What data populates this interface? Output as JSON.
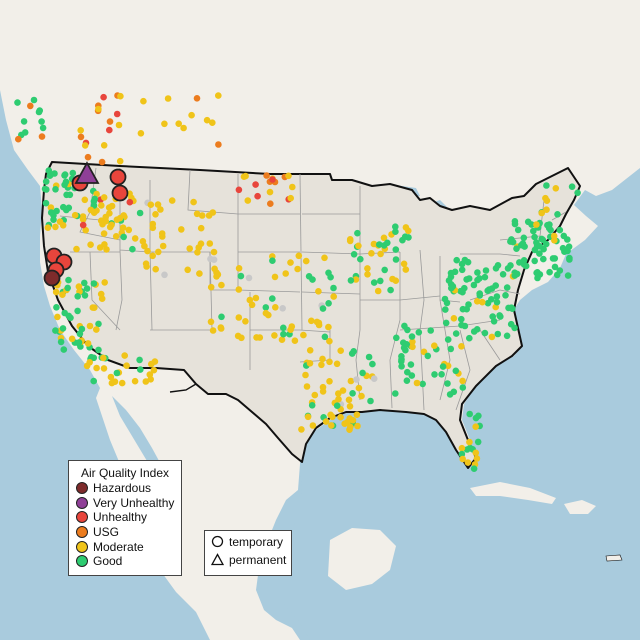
{
  "legend": {
    "title": "Air Quality Index",
    "categories": [
      {
        "label": "Hazardous",
        "color": "#7e2b2b"
      },
      {
        "label": "Very Unhealthy",
        "color": "#8f3f97"
      },
      {
        "label": "Unhealthy",
        "color": "#e8453c"
      },
      {
        "label": "USG",
        "color": "#ec7c1e"
      },
      {
        "label": "Moderate",
        "color": "#f0c419"
      },
      {
        "label": "Good",
        "color": "#2ecc71"
      }
    ]
  },
  "monitor_types": {
    "temporary_label": "temporary",
    "permanent_label": "permanent",
    "temporary_symbol": "circle-icon",
    "permanent_symbol": "triangle-icon"
  },
  "colors": {
    "land": "#f2efe9",
    "water": "#a9cbdd",
    "usa_fill": "#e6e2da",
    "state_border": "#9a9a9a",
    "country_border": "#111111",
    "no_data": "#c8c8c8"
  }
}
